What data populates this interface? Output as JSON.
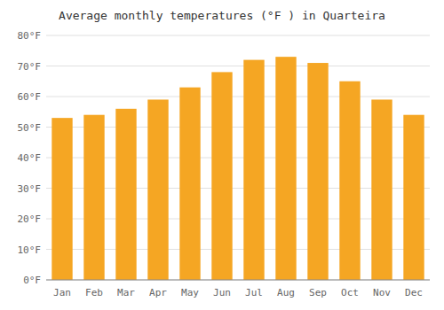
{
  "chart_data": {
    "type": "bar",
    "title": "Average monthly temperatures (°F ) in Quarteira",
    "categories": [
      "Jan",
      "Feb",
      "Mar",
      "Apr",
      "May",
      "Jun",
      "Jul",
      "Aug",
      "Sep",
      "Oct",
      "Nov",
      "Dec"
    ],
    "values": [
      53,
      54,
      56,
      59,
      63,
      68,
      72,
      73,
      71,
      65,
      59,
      54
    ],
    "color": "#F5A623",
    "ylim": [
      0,
      80
    ],
    "yticks": [
      {
        "value": 0,
        "label": "0°F"
      },
      {
        "value": 10,
        "label": "10°F"
      },
      {
        "value": 20,
        "label": "20°F"
      },
      {
        "value": 30,
        "label": "30°F"
      },
      {
        "value": 40,
        "label": "40°F"
      },
      {
        "value": 50,
        "label": "50°F"
      },
      {
        "value": 60,
        "label": "60°F"
      },
      {
        "value": 70,
        "label": "70°F"
      },
      {
        "value": 80,
        "label": "80°F"
      }
    ],
    "grid": true
  }
}
